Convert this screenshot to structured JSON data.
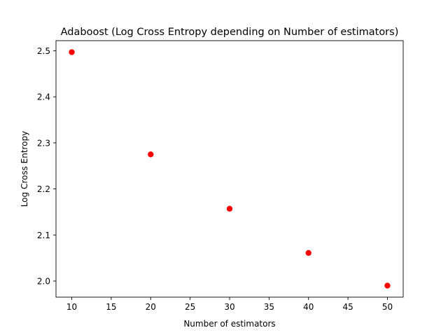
{
  "chart_data": {
    "type": "scatter",
    "title": "Adaboost (Log Cross Entropy depending on Number of estimators)",
    "xlabel": "Number of estimators",
    "ylabel": "Log Cross Entropy",
    "xlim": [
      8,
      52
    ],
    "ylim": [
      1.965,
      2.522
    ],
    "xticks": [
      10,
      15,
      20,
      25,
      30,
      35,
      40,
      45,
      50
    ],
    "xtick_labels": [
      "10",
      "15",
      "20",
      "25",
      "30",
      "35",
      "40",
      "45",
      "50"
    ],
    "yticks": [
      2.0,
      2.1,
      2.2,
      2.3,
      2.4,
      2.5
    ],
    "ytick_labels": [
      "2.0",
      "2.1",
      "2.2",
      "2.3",
      "2.4",
      "2.5"
    ],
    "grid": false,
    "series": [
      {
        "name": "Log Cross Entropy",
        "color": "#ff0000",
        "x": [
          10,
          20,
          30,
          40,
          50
        ],
        "y": [
          2.497,
          2.275,
          2.157,
          2.061,
          1.99
        ]
      }
    ]
  }
}
